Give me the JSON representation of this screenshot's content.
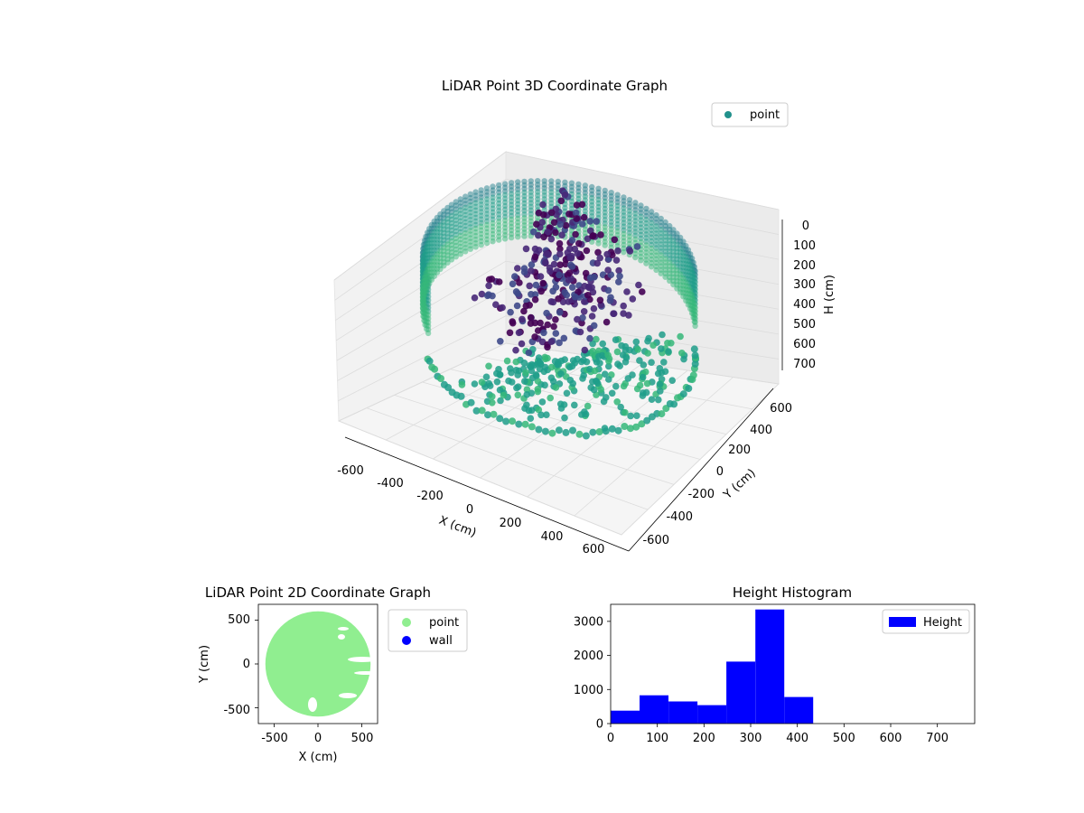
{
  "chart_data": [
    {
      "type": "scatter",
      "projection": "3d",
      "title": "LiDAR Point 3D Coordinate Graph",
      "xlabel": "X (cm)",
      "ylabel": "Y (cm)",
      "zlabel": "H (cm)",
      "xlim": [
        -700,
        700
      ],
      "ylim": [
        -700,
        700
      ],
      "zlim": [
        0,
        780
      ],
      "z_inverted": true,
      "xticks": [
        "-600",
        "-400",
        "-200",
        "0",
        "200",
        "400",
        "600"
      ],
      "yticks": [
        "-600",
        "-400",
        "-200",
        "0",
        "200",
        "400",
        "600"
      ],
      "zticks": [
        "0",
        "100",
        "200",
        "300",
        "400",
        "500",
        "600",
        "700"
      ],
      "colormap": "viridis",
      "legend": {
        "placement": "top-right",
        "entries": [
          {
            "label": "point",
            "color": "#21918c"
          }
        ]
      },
      "points_estimated": [
        [
          -120,
          250,
          170
        ],
        [
          -60,
          150,
          230
        ],
        [
          30,
          40,
          260
        ],
        [
          120,
          -80,
          300
        ],
        [
          -80,
          50,
          250
        ],
        [
          60,
          300,
          220
        ],
        [
          -200,
          -100,
          330
        ],
        [
          180,
          100,
          280
        ],
        [
          10,
          -250,
          340
        ],
        [
          -150,
          400,
          210
        ]
      ]
    },
    {
      "type": "scatter",
      "title": "LiDAR Point 2D Coordinate Graph",
      "xlabel": "X (cm)",
      "ylabel": "Y (cm)",
      "xlim": [
        -680,
        680
      ],
      "ylim": [
        -680,
        680
      ],
      "xticks": [
        "-500",
        "0",
        "500"
      ],
      "yticks": [
        "-500",
        "0",
        "500"
      ],
      "series": [
        {
          "name": "point",
          "color": "#90ee90",
          "region": "filled disc",
          "radius": 600
        },
        {
          "name": "wall",
          "color": "#0000ff"
        }
      ],
      "legend": {
        "placement": "outside-right"
      }
    },
    {
      "type": "bar",
      "histogram": true,
      "title": "Height Histogram",
      "xlim": [
        0,
        780
      ],
      "ylim": [
        0,
        3500
      ],
      "xticks": [
        "0",
        "100",
        "200",
        "300",
        "400",
        "500",
        "600",
        "700"
      ],
      "yticks": [
        "0",
        "1000",
        "2000",
        "3000"
      ],
      "bins": [
        {
          "start": 0,
          "end": 62,
          "value": 380
        },
        {
          "start": 62,
          "end": 124,
          "value": 830
        },
        {
          "start": 124,
          "end": 186,
          "value": 650
        },
        {
          "start": 186,
          "end": 248,
          "value": 540
        },
        {
          "start": 248,
          "end": 310,
          "value": 1820
        },
        {
          "start": 310,
          "end": 372,
          "value": 3350
        },
        {
          "start": 372,
          "end": 434,
          "value": 780
        }
      ],
      "series": [
        {
          "name": "Height",
          "color": "#0000ff"
        }
      ],
      "legend": {
        "placement": "top-right"
      }
    }
  ]
}
